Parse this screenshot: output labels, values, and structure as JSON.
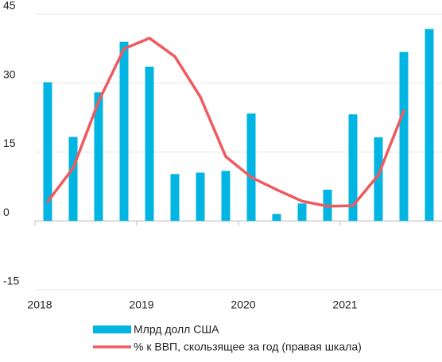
{
  "chart_data": {
    "type": "bar",
    "categories": [
      "2018",
      null,
      null,
      null,
      "2019",
      null,
      null,
      null,
      "2020",
      null,
      null,
      null,
      "2021",
      null,
      null,
      null
    ],
    "series": [
      {
        "name": "Млрд долл США",
        "type": "bar",
        "color": "#00b5e2",
        "values": [
          30.2,
          18.3,
          28,
          39,
          33.6,
          10.2,
          10.5,
          10.9,
          23.4,
          1.5,
          3.8,
          6.8,
          23.2,
          18.2,
          36.8,
          41.8
        ]
      },
      {
        "name": "% к ВВП, скользящее за год (правая шкала)",
        "type": "line",
        "color": "#f05a5f",
        "values": [
          4.2,
          11.5,
          26,
          37.5,
          39.8,
          35.8,
          27,
          14,
          9.5,
          6.8,
          4.3,
          3.2,
          3.3,
          10,
          24,
          null
        ]
      }
    ],
    "ylim": [
      -15,
      45
    ],
    "yticks": [
      45,
      30,
      15,
      0,
      -15
    ],
    "grid": true
  }
}
